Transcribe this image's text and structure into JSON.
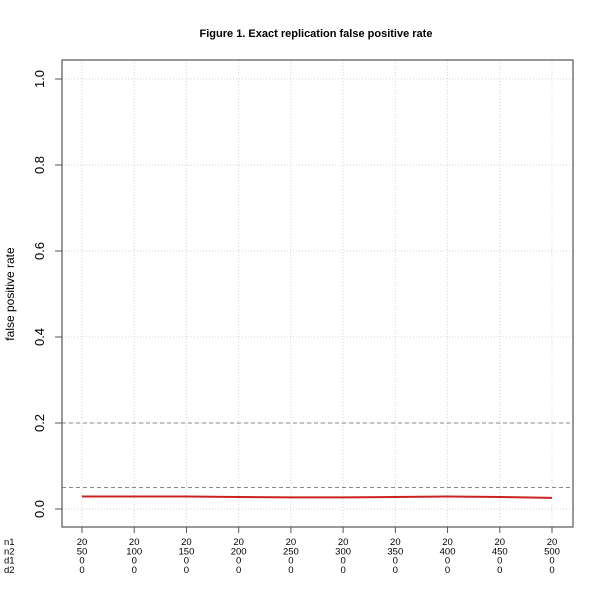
{
  "chart_data": {
    "type": "line",
    "title": "Figure 1. Exact replication false positive rate",
    "xlabel": "",
    "ylabel": "false positive rate",
    "ylim": [
      0,
      1
    ],
    "yticks": [
      "0.0",
      "0.2",
      "0.4",
      "0.6",
      "0.8",
      "1.0"
    ],
    "grid": true,
    "x_row_labels": [
      "n1",
      "n2",
      "d1",
      "d2"
    ],
    "x_conditions": [
      {
        "n1": "20",
        "n2": "50",
        "d1": "0",
        "d2": "0"
      },
      {
        "n1": "20",
        "n2": "100",
        "d1": "0",
        "d2": "0"
      },
      {
        "n1": "20",
        "n2": "150",
        "d1": "0",
        "d2": "0"
      },
      {
        "n1": "20",
        "n2": "200",
        "d1": "0",
        "d2": "0"
      },
      {
        "n1": "20",
        "n2": "250",
        "d1": "0",
        "d2": "0"
      },
      {
        "n1": "20",
        "n2": "300",
        "d1": "0",
        "d2": "0"
      },
      {
        "n1": "20",
        "n2": "350",
        "d1": "0",
        "d2": "0"
      },
      {
        "n1": "20",
        "n2": "400",
        "d1": "0",
        "d2": "0"
      },
      {
        "n1": "20",
        "n2": "450",
        "d1": "0",
        "d2": "0"
      },
      {
        "n1": "20",
        "n2": "500",
        "d1": "0",
        "d2": "0"
      }
    ],
    "series": [
      {
        "name": "false positive rate",
        "color": "#cc2222",
        "values": [
          0.029,
          0.029,
          0.029,
          0.028,
          0.027,
          0.027,
          0.028,
          0.029,
          0.028,
          0.026
        ]
      }
    ],
    "reference_lines": [
      {
        "y": 0.05,
        "style": "dashed",
        "color": "#888888"
      },
      {
        "y": 0.2,
        "style": "dashed",
        "color": "#888888"
      }
    ]
  }
}
